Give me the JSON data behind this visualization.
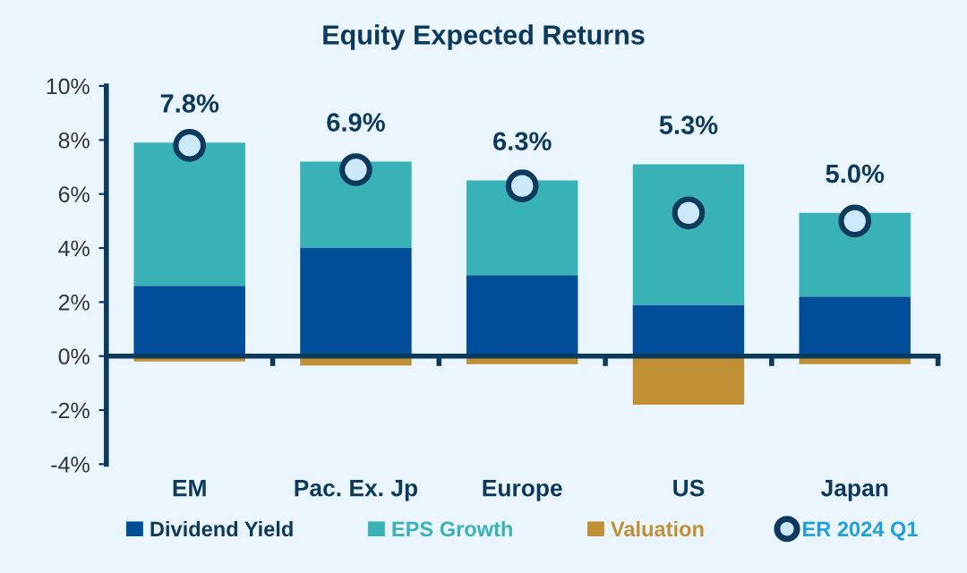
{
  "chart_data": {
    "type": "bar",
    "title": "Equity Expected Returns",
    "stacked": true,
    "categories": [
      "EM",
      "Pac. Ex. Jp",
      "Europe",
      "US",
      "Japan"
    ],
    "series": [
      {
        "name": "Dividend Yield",
        "color": "#004d99",
        "values": [
          2.6,
          4.0,
          3.0,
          1.9,
          2.2
        ]
      },
      {
        "name": "EPS Growth",
        "color": "#38b2b7",
        "values": [
          5.3,
          3.2,
          3.5,
          5.2,
          3.1
        ]
      },
      {
        "name": "Valuation",
        "color": "#c09035",
        "values": [
          -0.2,
          -0.35,
          -0.3,
          -1.8,
          -0.3
        ]
      },
      {
        "name": "ER 2024 Q1",
        "type": "scatter",
        "color": "#cce9fa",
        "marker": "circle",
        "values": [
          7.8,
          6.9,
          6.3,
          5.3,
          5.0
        ],
        "value_labels": [
          "7.8%",
          "6.9%",
          "6.3%",
          "5.3%",
          "5.0%"
        ]
      }
    ],
    "ylim": [
      -4,
      10
    ],
    "yticks": [
      {
        "value": -4,
        "label": "-4%"
      },
      {
        "value": -2,
        "label": "-2%"
      },
      {
        "value": 0,
        "label": "0%"
      },
      {
        "value": 2,
        "label": "2%"
      },
      {
        "value": 4,
        "label": "4%"
      },
      {
        "value": 6,
        "label": "6%"
      },
      {
        "value": 8,
        "label": "8%"
      },
      {
        "value": 10,
        "label": "10%"
      }
    ],
    "grid": false,
    "legend": "bottom"
  }
}
